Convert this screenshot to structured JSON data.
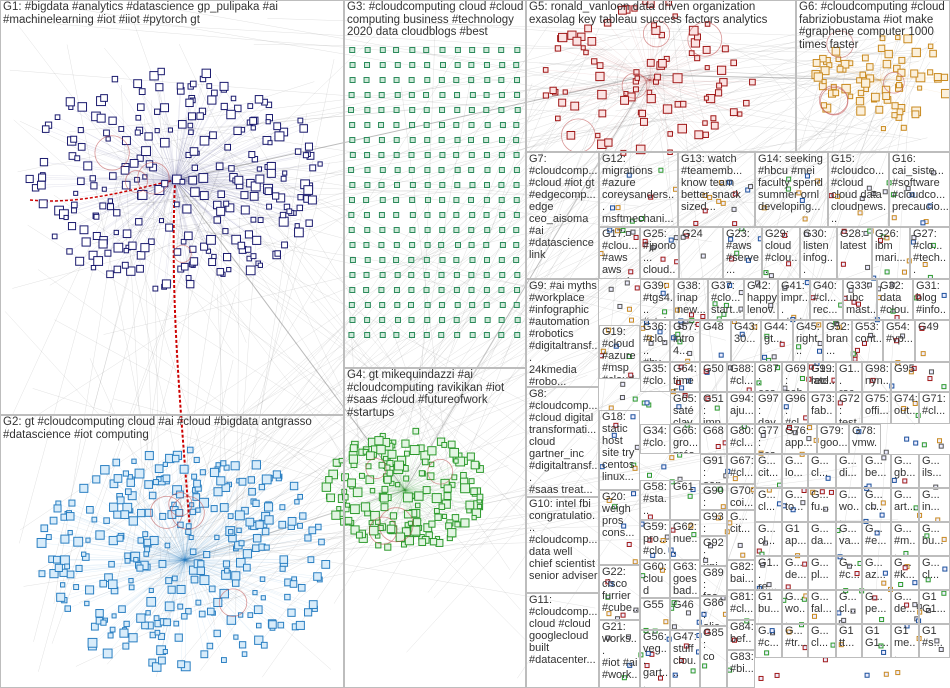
{
  "groups": [
    {
      "id": "G1",
      "text": "G1: #bigdata #analytics #datascience gp_pulipaka #ai\n#machinelearning #iot #iiot #pytorch gt"
    },
    {
      "id": "G2",
      "text": "G2: gt #cloudcomputing cloud #ai #cloud #bigdata antgrasso\n#datascience #iot computing"
    },
    {
      "id": "G3",
      "text": "G3: #cloudcomputing cloud #cloud\ncomputing business #technology\n2020 data cloudblogs #best"
    },
    {
      "id": "G4",
      "text": "G4: gt mikequindazzi #ai\n#cloudcomputing ravikikan #iot\n#saas #cloud #futureofwork\n#startups"
    },
    {
      "id": "G5",
      "text": "G5: ronald_vanloon data driven organization\nexasolag key tableau success factors analytics"
    },
    {
      "id": "G6",
      "text": "G6: #cloudcomputing #cloud\nfabriziobustama #iot make\n#graphene computer 1000\ntimes faster"
    },
    {
      "id": "G7",
      "text": "G7:\n#cloudcomp...\n#cloud #iot gt\n#edgecomp...\nedge\nceo_aisoma\n#ai\n#datascience\nlink"
    },
    {
      "id": "G8",
      "text": "G8:\n#cloudcomp...\n#cloud digital\ntransformati...\ncloud\ngartner_inc\n#digitaltransf...\n#saas treat..."
    },
    {
      "id": "G9",
      "text": "G9: #ai myths\n#workplace\n#infographic\n#automation\n#robotics\n#digitaltransf...\n24kmedia\n#robo..."
    },
    {
      "id": "G10",
      "text": "G10: intel fbi\ncongratulatio...\n#cloudcomp...\ndata well\nchief scientist\nsenior adviser"
    },
    {
      "id": "G11",
      "text": "G11:\n#cloudcomp...\ncloud #cloud\ngooglecloud\nbuilt\n#datacenter..."
    },
    {
      "id": "G12",
      "text": "G12:\nmigrations\n#azure\ncoreysanders...\nmsftmechani..."
    },
    {
      "id": "G13",
      "text": "G13: watch\n#teamemb...\nknow team\nbetter snack\nsized..."
    },
    {
      "id": "G14",
      "text": "G14: seeking\n#hbcu #mei\nfaculty spend\nsummer ornl\ndeveloping..."
    },
    {
      "id": "G15",
      "text": "G15:\n#cloudco...\n#cloud\ncloud data\ncloudnews..."
    },
    {
      "id": "G16",
      "text": "G16:\ncai_siste...\n#software\n#cloudco...\nprecaucio..."
    },
    {
      "id": "G17",
      "text": "G17:\n#clou...\n#aws\naws\nawscl...\nspotinst\nauth0..."
    },
    {
      "id": "G18",
      "text": "G18:\nstatic\nhost\nsite try\ncentos\nlinux..."
    },
    {
      "id": "G19",
      "text": "G19:\n#cloud\n#azure\n#msp\n#cloud\ncloud..."
    },
    {
      "id": "G20",
      "text": "G20:\nweigh\npros\ncons..."
    },
    {
      "id": "G21",
      "text": "G21:\nworks...\n#iot #ai\n#work..."
    },
    {
      "id": "G22",
      "text": "G22:\ncisco\nfurrier\n#cube..."
    },
    {
      "id": "G23",
      "text": "G23:\n#aws\n#serve..."
    },
    {
      "id": "G24",
      "text": "G24"
    },
    {
      "id": "G25",
      "text": "G25:\n#jpono...\ncloud..."
    },
    {
      "id": "G26",
      "text": "G26:\nibm\nmari..."
    },
    {
      "id": "G27",
      "text": "G27:\n#clo...\n#tech..."
    },
    {
      "id": "G28",
      "text": "G28:\nlatest"
    },
    {
      "id": "G29",
      "text": "G29:\ncloud\n#clou..."
    },
    {
      "id": "G30",
      "text": "G30:\nlisten\ninfog..."
    },
    {
      "id": "G31",
      "text": "G31:\nblog\n#info..."
    },
    {
      "id": "G32",
      "text": "G32:\ndata\n#clou..."
    },
    {
      "id": "G33",
      "text": "G33:\nubc\nmast..."
    },
    {
      "id": "G34",
      "text": "G34:\n#clo...\nclou..."
    },
    {
      "id": "G35",
      "text": "G35:\n#clo...\ntren..."
    },
    {
      "id": "G36",
      "text": "G36:\n#clo...\n#hy..."
    },
    {
      "id": "G37",
      "text": "G37:\n#clo...\nstart..."
    },
    {
      "id": "G38",
      "text": "G38:\ninap\nnew..."
    },
    {
      "id": "G39",
      "text": "G39:\n#tgs4...\n#stpi..."
    },
    {
      "id": "G40",
      "text": "G40:\n#cl...\nrec..."
    },
    {
      "id": "G41",
      "text": "G41:\nimpr...\nstart..."
    },
    {
      "id": "G42",
      "text": "G42:\nhappy\nlenov..."
    },
    {
      "id": "G43",
      "text": "G43:\n30..."
    },
    {
      "id": "G44",
      "text": "G44:\ngt..."
    },
    {
      "id": "G45",
      "text": "G45:\nright..."
    },
    {
      "id": "G46",
      "text": "G46"
    },
    {
      "id": "G47",
      "text": "G47:\nstuff\nclou..."
    },
    {
      "id": "G48",
      "text": "G48"
    },
    {
      "id": "G49",
      "text": "G49"
    },
    {
      "id": "G50",
      "text": "G50"
    },
    {
      "id": "G51",
      "text": "G51:\nimp...\ntec..."
    },
    {
      "id": "G52",
      "text": "G52:\nbran..."
    },
    {
      "id": "G53",
      "text": "G53:\ncont..."
    },
    {
      "id": "G54",
      "text": "G54:\n#vp..."
    },
    {
      "id": "G55",
      "text": "G55"
    },
    {
      "id": "G56",
      "text": "G56:\nveg...\ngart..."
    },
    {
      "id": "G57",
      "text": "G57:\nintro\n4..."
    },
    {
      "id": "G58",
      "text": "G58:\n#sta...\nserv..."
    },
    {
      "id": "G59",
      "text": "G59:\npro...\n#clo..."
    },
    {
      "id": "G60",
      "text": "G60:\ncloud\nsma..."
    },
    {
      "id": "G61",
      "text": "G61"
    },
    {
      "id": "G62",
      "text": "G62:\nnue..."
    },
    {
      "id": "G63",
      "text": "G63:\ngoes\nbad..."
    },
    {
      "id": "G64",
      "text": "G64:\ntime\n5..."
    },
    {
      "id": "G65",
      "text": "G65:\nsaté\nclav..."
    },
    {
      "id": "G66",
      "text": "G66:\ngro...\nprés..."
    },
    {
      "id": "G67",
      "text": "G67:\n#cl..."
    },
    {
      "id": "G68",
      "text": "G68"
    },
    {
      "id": "G69",
      "text": "G69:\nsab..."
    },
    {
      "id": "G70",
      "text": "G70:\ncoi..."
    },
    {
      "id": "G71",
      "text": "G71:\n#cl..."
    },
    {
      "id": "G72",
      "text": "G72:\ntest"
    },
    {
      "id": "G73",
      "text": "G73:\nfab..."
    },
    {
      "id": "G74",
      "text": "G74:\nout..."
    },
    {
      "id": "G75",
      "text": "G75:\noffi..."
    },
    {
      "id": "G76",
      "text": "G76:\napp..."
    },
    {
      "id": "G77",
      "text": "G77:\neco..."
    },
    {
      "id": "G78",
      "text": "G78:\nvmw..."
    },
    {
      "id": "G79",
      "text": "G79:\ngoo..."
    },
    {
      "id": "G80",
      "text": "G80:\n#cl..."
    },
    {
      "id": "G81",
      "text": "G81:\n#cl..."
    },
    {
      "id": "G82",
      "text": "G82:\nbai..."
    },
    {
      "id": "G83",
      "text": "G83:\n#bi..."
    },
    {
      "id": "G84",
      "text": "G84:\nbef..."
    },
    {
      "id": "G85",
      "text": "G85:\nco"
    },
    {
      "id": "G86",
      "text": "G86:\nolie..."
    },
    {
      "id": "G87",
      "text": "G87:\neco..."
    },
    {
      "id": "G88",
      "text": "G88:\n#cl..."
    },
    {
      "id": "G89",
      "text": "G89:\nfas..."
    },
    {
      "id": "G90",
      "text": "G90:\n#jo..."
    },
    {
      "id": "G91",
      "text": "G91:\noan..."
    },
    {
      "id": "G92",
      "text": "G92:\nuni..."
    },
    {
      "id": "G93",
      "text": "G93:\n#cl..."
    },
    {
      "id": "G94",
      "text": "G94:\naju..."
    },
    {
      "id": "G95",
      "text": "G95"
    },
    {
      "id": "G96",
      "text": "G96:\n#cl..."
    },
    {
      "id": "G97",
      "text": "G97:\nday"
    },
    {
      "id": "G98",
      "text": "G98:\nnyn..."
    },
    {
      "id": "G99",
      "text": "G99:\nrecl..."
    },
    {
      "id": "G100",
      "text": "G1...\nlate..."
    },
    {
      "id": "G101",
      "text": "G1...\nrac..."
    }
  ],
  "small_cells": [
    "G...\ncit...",
    "G...\nlo...",
    "G...\ncl...",
    "G...\ndi...",
    "G...\nbe...",
    "G...\ngb...",
    "G...\nils...",
    "G...\ncl...",
    "G...\nto...",
    "G...\nfu...",
    "G...\nwo...",
    "G...\ncl...",
    "G...\nart...",
    "G...\nin...",
    "G...\ncl...",
    "G1\nap...",
    "G...\nda...",
    "G...\nva...",
    "G...\n#e...",
    "G...\n#m...",
    "G...\nbu...",
    "G1...\nre...",
    "G...\nde...",
    "G...\npl...",
    "G...\n#c...",
    "G...\naz...",
    "G...\n#k...",
    "G...\ncl...",
    "G1\nbu...",
    "G...\nwo...",
    "G...\nfal...",
    "G...\ncl...",
    "G...\npe...",
    "G...\nde...",
    "G1\nG1...",
    "G...\n#c...",
    "G...\n#tr...",
    "G...\ncl...",
    "G1\ntt...",
    "G1\nG1...",
    "G1\nme...",
    "G1\n#s..."
  ]
}
